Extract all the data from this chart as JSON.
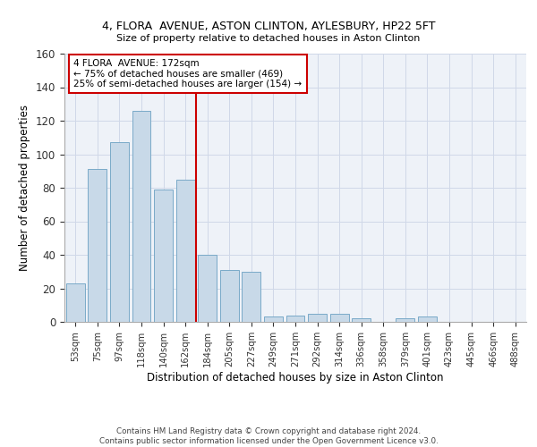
{
  "title1": "4, FLORA  AVENUE, ASTON CLINTON, AYLESBURY, HP22 5FT",
  "title2": "Size of property relative to detached houses in Aston Clinton",
  "xlabel": "Distribution of detached houses by size in Aston Clinton",
  "ylabel": "Number of detached properties",
  "footer": "Contains HM Land Registry data © Crown copyright and database right 2024.\nContains public sector information licensed under the Open Government Licence v3.0.",
  "bar_labels": [
    "53sqm",
    "75sqm",
    "97sqm",
    "118sqm",
    "140sqm",
    "162sqm",
    "184sqm",
    "205sqm",
    "227sqm",
    "249sqm",
    "271sqm",
    "292sqm",
    "314sqm",
    "336sqm",
    "358sqm",
    "379sqm",
    "401sqm",
    "423sqm",
    "445sqm",
    "466sqm",
    "488sqm"
  ],
  "bar_values": [
    23,
    91,
    107,
    126,
    79,
    85,
    40,
    31,
    30,
    3,
    4,
    5,
    5,
    2,
    0,
    2,
    3,
    0,
    0,
    0,
    0
  ],
  "property_label": "4 FLORA  AVENUE: 172sqm",
  "annotation_line1": "← 75% of detached houses are smaller (469)",
  "annotation_line2": "25% of semi-detached houses are larger (154) →",
  "bar_color": "#c8d9e8",
  "bar_edge_color": "#7aaac8",
  "vline_color": "#cc0000",
  "annotation_box_edge_color": "#cc0000",
  "bg_color": "#eef2f8",
  "grid_color": "#d0d8e8",
  "ylim": [
    0,
    160
  ],
  "yticks": [
    0,
    20,
    40,
    60,
    80,
    100,
    120,
    140,
    160
  ],
  "vline_x": 5.5
}
